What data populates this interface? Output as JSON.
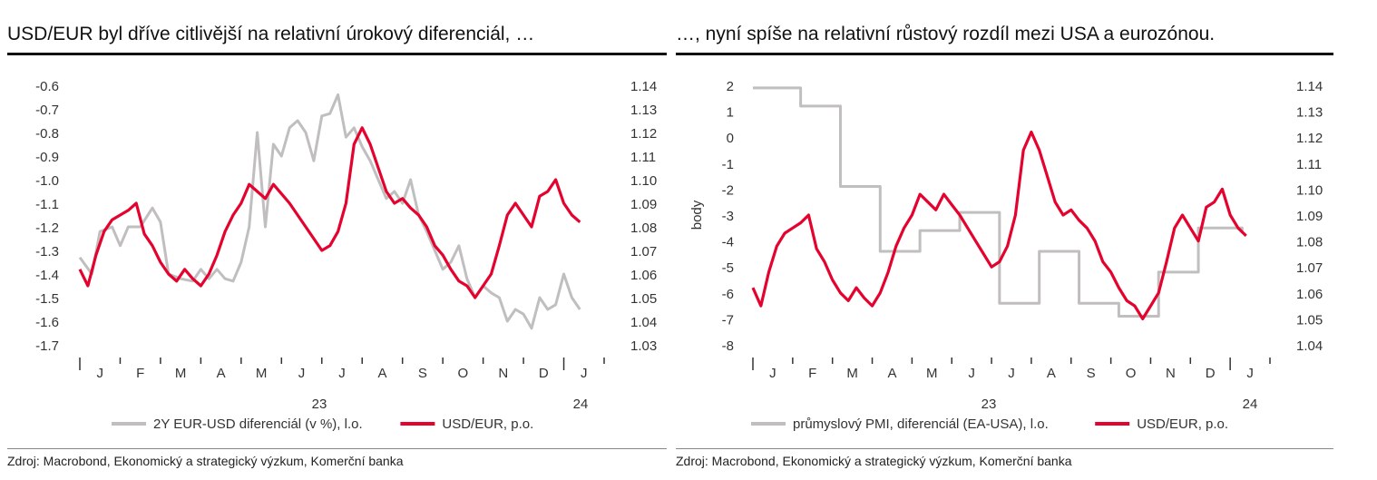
{
  "panels": [
    {
      "title": "USD/EUR byl dříve citlivější na relativní úrokový diferenciál, …",
      "source": "Zdroj: Macrobond, Ekonomický a strategický výzkum, Komerční banka"
    },
    {
      "title": "…, nyní spíše na relativní růstový rozdíl mezi USA a eurozónou.",
      "source": "Zdroj: Macrobond, Ekonomický a strategický výzkum, Komerční banka"
    }
  ],
  "chart_data": [
    {
      "type": "line",
      "title": "USD/EUR byl dříve citlivější na relativní úrokový diferenciál, …",
      "x_tick_labels": [
        "J",
        "F",
        "M",
        "A",
        "M",
        "J",
        "J",
        "A",
        "S",
        "O",
        "N",
        "D",
        "J"
      ],
      "year_labels": [
        "23",
        "24"
      ],
      "left_axis": {
        "ylabel": "",
        "ylim": [
          -1.7,
          -0.6
        ],
        "ticks": [
          "-0.6",
          "-0.7",
          "-0.8",
          "-0.9",
          "-1.0",
          "-1.1",
          "-1.2",
          "-1.3",
          "-1.4",
          "-1.5",
          "-1.6",
          "-1.7"
        ]
      },
      "right_axis": {
        "ylabel": "",
        "ylim": [
          1.03,
          1.14
        ],
        "ticks": [
          "1.14",
          "1.13",
          "1.12",
          "1.11",
          "1.10",
          "1.09",
          "1.08",
          "1.07",
          "1.06",
          "1.05",
          "1.04",
          "1.03"
        ]
      },
      "legend_position": "bottom",
      "series": [
        {
          "name": "2Y EUR-USD diferenciál (v %), l.o.",
          "axis": "left",
          "color": "#c0bebe",
          "x": [
            0,
            0.3,
            0.5,
            0.8,
            1.0,
            1.2,
            1.5,
            1.8,
            2.0,
            2.2,
            2.5,
            2.8,
            3.0,
            3.2,
            3.4,
            3.6,
            3.8,
            4.0,
            4.2,
            4.4,
            4.6,
            4.8,
            5.0,
            5.2,
            5.4,
            5.6,
            5.8,
            6.0,
            6.2,
            6.4,
            6.6,
            6.8,
            7.0,
            7.2,
            7.4,
            7.6,
            7.8,
            8.0,
            8.2,
            8.4,
            8.6,
            8.8,
            9.0,
            9.2,
            9.4,
            9.6,
            9.8,
            10.0,
            10.2,
            10.4,
            10.6,
            10.8,
            11.0,
            11.2,
            11.4,
            11.6,
            11.8,
            12.0,
            12.2,
            12.4
          ],
          "values": [
            -1.33,
            -1.4,
            -1.22,
            -1.2,
            -1.28,
            -1.2,
            -1.2,
            -1.12,
            -1.18,
            -1.4,
            -1.42,
            -1.43,
            -1.38,
            -1.42,
            -1.38,
            -1.42,
            -1.43,
            -1.35,
            -1.2,
            -0.8,
            -1.2,
            -0.85,
            -0.9,
            -0.78,
            -0.75,
            -0.8,
            -0.92,
            -0.73,
            -0.72,
            -0.64,
            -0.82,
            -0.78,
            -0.86,
            -0.92,
            -1.0,
            -1.08,
            -1.05,
            -1.1,
            -1.0,
            -1.15,
            -1.22,
            -1.3,
            -1.38,
            -1.35,
            -1.28,
            -1.42,
            -1.5,
            -1.45,
            -1.48,
            -1.5,
            -1.6,
            -1.55,
            -1.57,
            -1.63,
            -1.5,
            -1.55,
            -1.53,
            -1.4,
            -1.5,
            -1.55
          ]
        },
        {
          "name": "USD/EUR, p.o.",
          "axis": "right",
          "color": "#e4032e",
          "x": [
            0,
            0.2,
            0.4,
            0.6,
            0.8,
            1.0,
            1.2,
            1.4,
            1.6,
            1.8,
            2.0,
            2.2,
            2.4,
            2.6,
            2.8,
            3.0,
            3.2,
            3.4,
            3.6,
            3.8,
            4.0,
            4.2,
            4.4,
            4.6,
            4.8,
            5.0,
            5.2,
            5.4,
            5.6,
            5.8,
            6.0,
            6.2,
            6.4,
            6.6,
            6.8,
            7.0,
            7.2,
            7.4,
            7.6,
            7.8,
            8.0,
            8.2,
            8.4,
            8.6,
            8.8,
            9.0,
            9.2,
            9.4,
            9.6,
            9.8,
            10.0,
            10.2,
            10.4,
            10.6,
            10.8,
            11.0,
            11.2,
            11.4,
            11.6,
            11.8,
            12.0,
            12.2,
            12.4
          ],
          "values": [
            1.062,
            1.055,
            1.068,
            1.078,
            1.083,
            1.085,
            1.087,
            1.09,
            1.077,
            1.072,
            1.065,
            1.06,
            1.057,
            1.062,
            1.058,
            1.055,
            1.06,
            1.068,
            1.078,
            1.085,
            1.09,
            1.098,
            1.095,
            1.092,
            1.098,
            1.094,
            1.09,
            1.085,
            1.08,
            1.075,
            1.07,
            1.072,
            1.078,
            1.09,
            1.115,
            1.122,
            1.115,
            1.105,
            1.095,
            1.09,
            1.092,
            1.088,
            1.085,
            1.08,
            1.072,
            1.068,
            1.062,
            1.057,
            1.055,
            1.05,
            1.055,
            1.06,
            1.072,
            1.085,
            1.09,
            1.085,
            1.08,
            1.093,
            1.095,
            1.1,
            1.09,
            1.085,
            1.082
          ]
        }
      ]
    },
    {
      "type": "line",
      "title": "…, nyní spíše na relativní růstový rozdíl mezi USA a eurozónou.",
      "x_tick_labels": [
        "J",
        "F",
        "M",
        "A",
        "M",
        "J",
        "J",
        "A",
        "S",
        "O",
        "N",
        "D",
        "J"
      ],
      "year_labels": [
        "23",
        "24"
      ],
      "left_axis": {
        "ylabel": "body",
        "ylim": [
          -8,
          2
        ],
        "ticks": [
          "2",
          "1",
          "0",
          "-1",
          "-2",
          "-3",
          "-4",
          "-5",
          "-6",
          "-7",
          "-8"
        ]
      },
      "right_axis": {
        "ylabel": "",
        "ylim": [
          1.04,
          1.14
        ],
        "ticks": [
          "1.14",
          "1.13",
          "1.12",
          "1.11",
          "1.10",
          "1.09",
          "1.08",
          "1.07",
          "1.06",
          "1.05",
          "1.04"
        ]
      },
      "legend_position": "bottom",
      "series": [
        {
          "name": "průmyslový PMI, diferenciál (EA-USA), l.o.",
          "axis": "left",
          "color": "#c0bebe",
          "step": true,
          "x": [
            0,
            1.2,
            2.2,
            3.2,
            4.2,
            5.2,
            6.2,
            7.2,
            8.2,
            9.2,
            10.2,
            11.2,
            12.3
          ],
          "values": [
            1.9,
            1.2,
            -1.9,
            -4.4,
            -3.6,
            -2.9,
            -6.4,
            -4.4,
            -6.4,
            -6.9,
            -5.2,
            -3.5,
            -3.7
          ]
        },
        {
          "name": "USD/EUR, p.o.",
          "axis": "right",
          "color": "#e4032e",
          "x": [
            0,
            0.2,
            0.4,
            0.6,
            0.8,
            1.0,
            1.2,
            1.4,
            1.6,
            1.8,
            2.0,
            2.2,
            2.4,
            2.6,
            2.8,
            3.0,
            3.2,
            3.4,
            3.6,
            3.8,
            4.0,
            4.2,
            4.4,
            4.6,
            4.8,
            5.0,
            5.2,
            5.4,
            5.6,
            5.8,
            6.0,
            6.2,
            6.4,
            6.6,
            6.8,
            7.0,
            7.2,
            7.4,
            7.6,
            7.8,
            8.0,
            8.2,
            8.4,
            8.6,
            8.8,
            9.0,
            9.2,
            9.4,
            9.6,
            9.8,
            10.0,
            10.2,
            10.4,
            10.6,
            10.8,
            11.0,
            11.2,
            11.4,
            11.6,
            11.8,
            12.0,
            12.2,
            12.4
          ],
          "values": [
            1.062,
            1.055,
            1.068,
            1.078,
            1.083,
            1.085,
            1.087,
            1.09,
            1.077,
            1.072,
            1.065,
            1.06,
            1.057,
            1.062,
            1.058,
            1.055,
            1.06,
            1.068,
            1.078,
            1.085,
            1.09,
            1.098,
            1.095,
            1.092,
            1.098,
            1.094,
            1.09,
            1.085,
            1.08,
            1.075,
            1.07,
            1.072,
            1.078,
            1.09,
            1.115,
            1.122,
            1.115,
            1.105,
            1.095,
            1.09,
            1.092,
            1.088,
            1.085,
            1.08,
            1.072,
            1.068,
            1.062,
            1.057,
            1.055,
            1.05,
            1.055,
            1.06,
            1.072,
            1.085,
            1.09,
            1.085,
            1.08,
            1.093,
            1.095,
            1.1,
            1.09,
            1.085,
            1.082
          ]
        }
      ]
    }
  ]
}
